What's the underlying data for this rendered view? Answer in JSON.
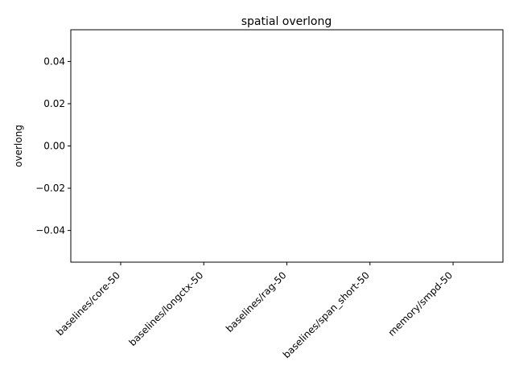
{
  "chart_data": {
    "type": "bar",
    "title": "spatial overlong",
    "xlabel": "",
    "ylabel": "overlong",
    "categories": [
      "baselines/core-50",
      "baselines/longctx-50",
      "baselines/rag-50",
      "baselines/span_short-50",
      "memory/smpd-50"
    ],
    "values": [
      0,
      0,
      0,
      0,
      0
    ],
    "ylim": [
      -0.055,
      0.055
    ],
    "yticks": [
      -0.04,
      -0.02,
      0.0,
      0.02,
      0.04
    ],
    "ytick_labels": [
      "−0.04",
      "−0.02",
      "0.00",
      "0.02",
      "0.04"
    ],
    "grid": false,
    "legend": "none"
  }
}
